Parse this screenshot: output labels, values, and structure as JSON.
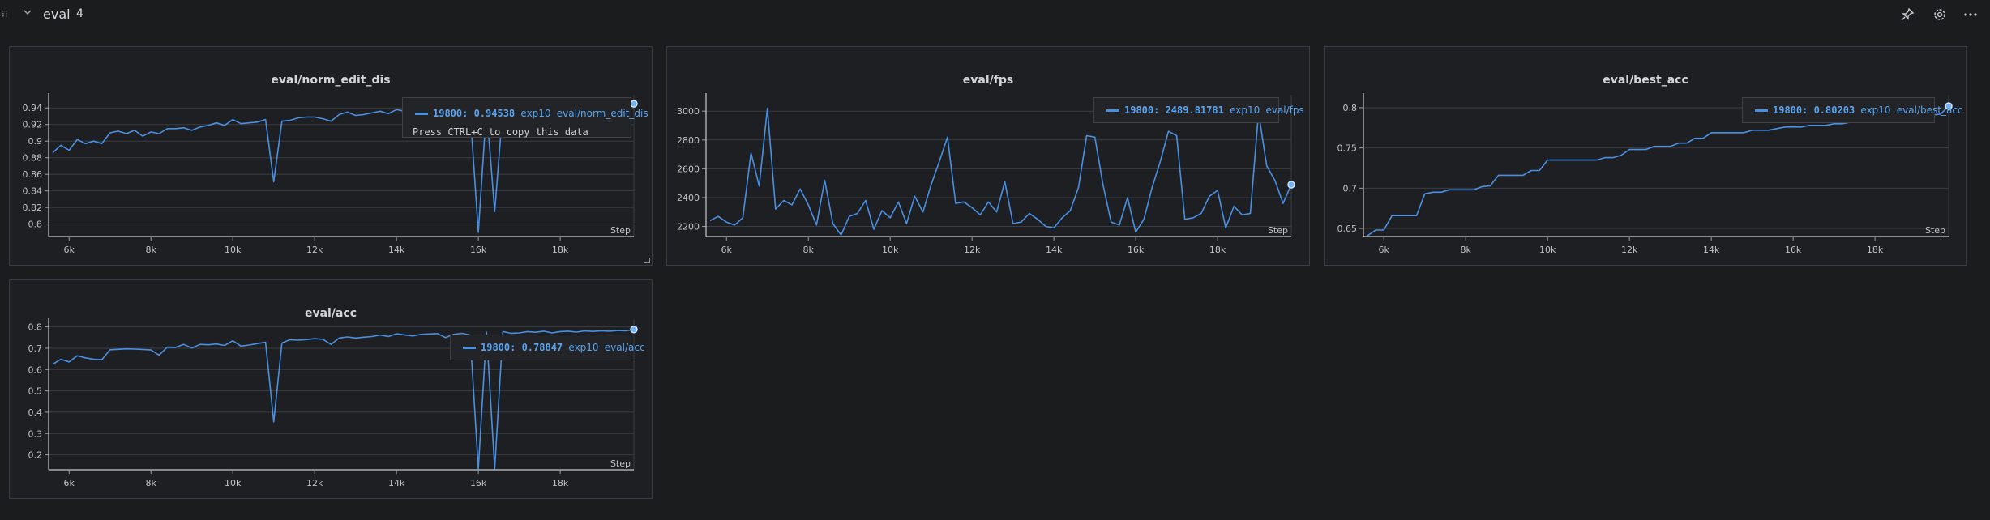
{
  "section": {
    "title": "eval",
    "count": "4"
  },
  "icons": [
    "drag-handle-icon",
    "chevron-down-icon",
    "pin-icon",
    "gear-icon",
    "more-icon"
  ],
  "colors": {
    "line": "#4a90e2",
    "grid": "#3a3d42",
    "panel": "#1e1f22",
    "background": "#1b1c1e"
  },
  "chart_data": [
    {
      "type": "line",
      "title": "eval/norm_edit_dis",
      "xlabel": "Step",
      "xlim": [
        5500,
        19800
      ],
      "ylim": [
        0.785,
        0.95
      ],
      "xticks": [
        6000,
        8000,
        10000,
        12000,
        14000,
        16000,
        18000
      ],
      "xtick_labels": [
        "6k",
        "8k",
        "10k",
        "12k",
        "14k",
        "16k",
        "18k"
      ],
      "yticks": [
        0.8,
        0.82,
        0.84,
        0.86,
        0.88,
        0.9,
        0.92,
        0.94
      ],
      "ytick_labels": [
        "0.8",
        "0.82",
        "0.84",
        "0.86",
        "0.88",
        "0.9",
        "0.92",
        "0.94"
      ],
      "x": [
        5600,
        5800,
        6000,
        6200,
        6400,
        6600,
        6800,
        7000,
        7200,
        7400,
        7600,
        7800,
        8000,
        8200,
        8400,
        8600,
        8800,
        9000,
        9200,
        9400,
        9600,
        9800,
        10000,
        10200,
        10400,
        10600,
        10800,
        11000,
        11200,
        11400,
        11600,
        11800,
        12000,
        12200,
        12400,
        12600,
        12800,
        13000,
        13200,
        13400,
        13600,
        13800,
        14000,
        14200,
        14400,
        14600,
        14800,
        15000,
        15200,
        15400,
        15600,
        15800,
        16000,
        16200,
        16400,
        16600,
        16800,
        17000,
        17200,
        17400,
        17600,
        17800,
        18000,
        18200,
        18400,
        18600,
        18800,
        19000,
        19200,
        19400,
        19600,
        19800
      ],
      "series": [
        {
          "values": [
            0.886,
            0.895,
            0.889,
            0.902,
            0.897,
            0.9,
            0.897,
            0.91,
            0.912,
            0.909,
            0.913,
            0.906,
            0.911,
            0.909,
            0.915,
            0.915,
            0.916,
            0.913,
            0.917,
            0.919,
            0.922,
            0.919,
            0.926,
            0.921,
            0.922,
            0.923,
            0.926,
            0.851,
            0.924,
            0.925,
            0.928,
            0.929,
            0.929,
            0.927,
            0.924,
            0.932,
            0.935,
            0.931,
            0.932,
            0.934,
            0.936,
            0.933,
            0.938,
            0.936,
            0.935,
            0.937,
            0.938,
            0.939,
            0.936,
            0.938,
            0.938,
            0.936,
            0.79,
            0.94,
            0.815,
            0.94,
            0.939,
            0.938,
            0.94,
            0.939,
            0.941,
            0.938,
            0.94,
            0.941,
            0.939,
            0.942,
            0.941,
            0.943,
            0.942,
            0.944,
            0.943,
            0.945
          ]
        }
      ],
      "tooltip": {
        "step": "19800",
        "value": "0.94538",
        "run": "exp10",
        "metric": "eval/norm_edit_dis",
        "hint": "Press CTRL+C to copy this data"
      }
    },
    {
      "type": "line",
      "title": "eval/fps",
      "xlabel": "Step",
      "xlim": [
        5500,
        19800
      ],
      "ylim": [
        2130,
        3080
      ],
      "xticks": [
        6000,
        8000,
        10000,
        12000,
        14000,
        16000,
        18000
      ],
      "xtick_labels": [
        "6k",
        "8k",
        "10k",
        "12k",
        "14k",
        "16k",
        "18k"
      ],
      "yticks": [
        2200,
        2400,
        2600,
        2800,
        3000
      ],
      "ytick_labels": [
        "2200",
        "2400",
        "2600",
        "2800",
        "3000"
      ],
      "x": [
        5600,
        5800,
        6000,
        6200,
        6400,
        6600,
        6800,
        7000,
        7200,
        7400,
        7600,
        7800,
        8000,
        8200,
        8400,
        8600,
        8800,
        9000,
        9200,
        9400,
        9600,
        9800,
        10000,
        10200,
        10400,
        10600,
        10800,
        11000,
        11200,
        11400,
        11600,
        11800,
        12000,
        12200,
        12400,
        12600,
        12800,
        13000,
        13200,
        13400,
        13600,
        13800,
        14000,
        14200,
        14400,
        14600,
        14800,
        15000,
        15200,
        15400,
        15600,
        15800,
        16000,
        16200,
        16400,
        16600,
        16800,
        17000,
        17200,
        17400,
        17600,
        17800,
        18000,
        18200,
        18400,
        18600,
        18800,
        19000,
        19200,
        19400,
        19600,
        19800
      ],
      "series": [
        {
          "values": [
            2240,
            2270,
            2230,
            2210,
            2260,
            2710,
            2480,
            3020,
            2320,
            2380,
            2350,
            2460,
            2350,
            2210,
            2520,
            2220,
            2140,
            2270,
            2290,
            2380,
            2180,
            2310,
            2260,
            2370,
            2220,
            2410,
            2300,
            2490,
            2650,
            2820,
            2360,
            2370,
            2330,
            2280,
            2370,
            2300,
            2510,
            2220,
            2230,
            2290,
            2250,
            2200,
            2190,
            2260,
            2310,
            2470,
            2830,
            2820,
            2490,
            2230,
            2210,
            2400,
            2160,
            2250,
            2470,
            2650,
            2860,
            2830,
            2250,
            2260,
            2290,
            2410,
            2450,
            2190,
            2340,
            2280,
            2290,
            2990,
            2620,
            2520,
            2360,
            2490
          ]
        }
      ],
      "tooltip": {
        "step": "19800",
        "value": "2489.81781",
        "run": "exp10",
        "metric": "eval/fps"
      }
    },
    {
      "type": "line",
      "title": "eval/best_acc",
      "xlabel": "Step",
      "xlim": [
        5500,
        19800
      ],
      "ylim": [
        0.64,
        0.81
      ],
      "xticks": [
        6000,
        8000,
        10000,
        12000,
        14000,
        16000,
        18000
      ],
      "xtick_labels": [
        "6k",
        "8k",
        "10k",
        "12k",
        "14k",
        "16k",
        "18k"
      ],
      "yticks": [
        0.65,
        0.7,
        0.75,
        0.8
      ],
      "ytick_labels": [
        "0.65",
        "0.7",
        "0.75",
        "0.8"
      ],
      "x": [
        5600,
        5800,
        6000,
        6200,
        6400,
        6600,
        6800,
        7000,
        7200,
        7400,
        7600,
        7800,
        8000,
        8200,
        8400,
        8600,
        8800,
        9000,
        9200,
        9400,
        9600,
        9800,
        10000,
        10200,
        10400,
        10600,
        10800,
        11000,
        11200,
        11400,
        11600,
        11800,
        12000,
        12200,
        12400,
        12600,
        12800,
        13000,
        13200,
        13400,
        13600,
        13800,
        14000,
        14200,
        14400,
        14600,
        14800,
        15000,
        15200,
        15400,
        15600,
        15800,
        16000,
        16200,
        16400,
        16600,
        16800,
        17000,
        17200,
        17400,
        17600,
        17800,
        18000,
        18200,
        18400,
        18600,
        18800,
        19000,
        19200,
        19400,
        19600,
        19800
      ],
      "series": [
        {
          "values": [
            0.641,
            0.648,
            0.648,
            0.666,
            0.666,
            0.666,
            0.666,
            0.693,
            0.695,
            0.695,
            0.698,
            0.698,
            0.698,
            0.698,
            0.702,
            0.703,
            0.716,
            0.716,
            0.716,
            0.716,
            0.722,
            0.722,
            0.735,
            0.735,
            0.735,
            0.735,
            0.735,
            0.735,
            0.735,
            0.738,
            0.738,
            0.741,
            0.748,
            0.748,
            0.748,
            0.752,
            0.752,
            0.752,
            0.756,
            0.756,
            0.762,
            0.762,
            0.769,
            0.769,
            0.769,
            0.769,
            0.769,
            0.772,
            0.772,
            0.772,
            0.774,
            0.776,
            0.776,
            0.776,
            0.778,
            0.778,
            0.778,
            0.78,
            0.78,
            0.782,
            0.782,
            0.784,
            0.784,
            0.785,
            0.786,
            0.787,
            0.788,
            0.789,
            0.79,
            0.791,
            0.792,
            0.802
          ]
        }
      ],
      "tooltip": {
        "step": "19800",
        "value": "0.80203",
        "run": "exp10",
        "metric": "eval/best_acc"
      }
    },
    {
      "type": "line",
      "title": "eval/acc",
      "xlabel": "Step",
      "xlim": [
        5500,
        19800
      ],
      "ylim": [
        0.13,
        0.81
      ],
      "xticks": [
        6000,
        8000,
        10000,
        12000,
        14000,
        16000,
        18000
      ],
      "xtick_labels": [
        "6k",
        "8k",
        "10k",
        "12k",
        "14k",
        "16k",
        "18k"
      ],
      "yticks": [
        0.2,
        0.3,
        0.4,
        0.5,
        0.6,
        0.7,
        0.8
      ],
      "ytick_labels": [
        "0.2",
        "0.3",
        "0.4",
        "0.5",
        "0.6",
        "0.7",
        "0.8"
      ],
      "x": [
        5600,
        5800,
        6000,
        6200,
        6400,
        6600,
        6800,
        7000,
        7200,
        7400,
        7600,
        7800,
        8000,
        8200,
        8400,
        8600,
        8800,
        9000,
        9200,
        9400,
        9600,
        9800,
        10000,
        10200,
        10400,
        10600,
        10800,
        11000,
        11200,
        11400,
        11600,
        11800,
        12000,
        12200,
        12400,
        12600,
        12800,
        13000,
        13200,
        13400,
        13600,
        13800,
        14000,
        14200,
        14400,
        14600,
        14800,
        15000,
        15200,
        15400,
        15600,
        15800,
        16000,
        16200,
        16400,
        16600,
        16800,
        17000,
        17200,
        17400,
        17600,
        17800,
        18000,
        18200,
        18400,
        18600,
        18800,
        19000,
        19200,
        19400,
        19600,
        19800
      ],
      "series": [
        {
          "values": [
            0.625,
            0.648,
            0.636,
            0.665,
            0.655,
            0.648,
            0.646,
            0.693,
            0.695,
            0.697,
            0.696,
            0.694,
            0.692,
            0.668,
            0.705,
            0.704,
            0.718,
            0.701,
            0.718,
            0.716,
            0.72,
            0.713,
            0.735,
            0.71,
            0.715,
            0.722,
            0.728,
            0.355,
            0.725,
            0.74,
            0.738,
            0.741,
            0.745,
            0.742,
            0.718,
            0.748,
            0.753,
            0.748,
            0.752,
            0.755,
            0.762,
            0.755,
            0.768,
            0.762,
            0.758,
            0.765,
            0.767,
            0.769,
            0.75,
            0.765,
            0.77,
            0.762,
            0.135,
            0.775,
            0.135,
            0.778,
            0.77,
            0.772,
            0.778,
            0.775,
            0.78,
            0.772,
            0.778,
            0.78,
            0.776,
            0.781,
            0.779,
            0.782,
            0.78,
            0.783,
            0.782,
            0.788
          ]
        }
      ],
      "tooltip": {
        "step": "19800",
        "value": "0.78847",
        "run": "exp10",
        "metric": "eval/acc"
      }
    }
  ]
}
